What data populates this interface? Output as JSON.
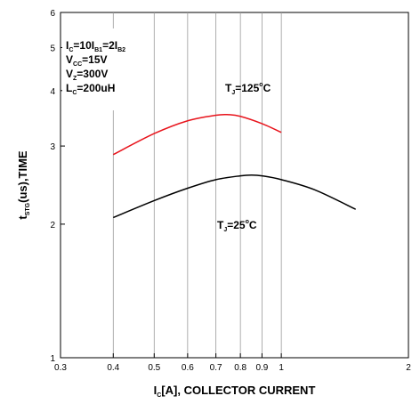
{
  "chart_data": {
    "type": "line",
    "x_scale": "log",
    "y_scale": "log",
    "xlim": [
      0.3,
      2
    ],
    "ylim": [
      1,
      6
    ],
    "x_ticks": [
      0.3,
      0.4,
      0.5,
      0.6,
      0.7,
      0.8,
      0.9,
      1,
      2
    ],
    "y_ticks": [
      1,
      2,
      3,
      4,
      5,
      6
    ],
    "x_tick_labels": [
      "0.3",
      "0.4",
      "0.5",
      "0.6",
      "0.7",
      "0.8",
      "0.9",
      "1",
      "2"
    ],
    "y_tick_labels": [
      "1",
      "2",
      "3",
      "4",
      "5",
      "6"
    ],
    "vertical_gridlines": [
      0.4,
      0.5,
      0.6,
      0.7,
      0.8,
      0.9,
      1
    ],
    "xlabel": {
      "main": "I",
      "sub": "C",
      "rest": "[A], COLLECTOR CURRENT"
    },
    "ylabel": {
      "main": "t",
      "sub": "STG",
      "rest": "(us),TIME"
    },
    "conditions": [
      {
        "parts": [
          [
            "I",
            ""
          ],
          [
            "C",
            "sub"
          ],
          [
            "=10I",
            ""
          ],
          [
            "B1",
            "sub"
          ],
          [
            "=2I",
            ""
          ],
          [
            "B2",
            "sub"
          ]
        ]
      },
      {
        "parts": [
          [
            "V",
            ""
          ],
          [
            "CC",
            "sub"
          ],
          [
            "=15V",
            ""
          ]
        ]
      },
      {
        "parts": [
          [
            "V",
            ""
          ],
          [
            "Z",
            "sub"
          ],
          [
            "=300V",
            ""
          ]
        ]
      },
      {
        "parts": [
          [
            "L",
            ""
          ],
          [
            "C",
            "sub"
          ],
          [
            "=200uH",
            ""
          ]
        ]
      }
    ],
    "series": [
      {
        "color": "#e8141c",
        "label_parts": [
          [
            "T",
            ""
          ],
          [
            "J",
            "sub"
          ],
          [
            "=125",
            ""
          ],
          [
            "o",
            "sup"
          ],
          [
            "C",
            ""
          ]
        ],
        "points": [
          [
            0.4,
            2.87
          ],
          [
            0.5,
            3.2
          ],
          [
            0.6,
            3.42
          ],
          [
            0.7,
            3.52
          ],
          [
            0.75,
            3.53
          ],
          [
            0.8,
            3.5
          ],
          [
            0.9,
            3.37
          ],
          [
            1.0,
            3.22
          ]
        ]
      },
      {
        "color": "#000000",
        "label_parts": [
          [
            "T",
            ""
          ],
          [
            "J",
            "sub"
          ],
          [
            "=25",
            ""
          ],
          [
            "o",
            "sup"
          ],
          [
            "C",
            ""
          ]
        ],
        "points": [
          [
            0.4,
            2.07
          ],
          [
            0.5,
            2.26
          ],
          [
            0.6,
            2.41
          ],
          [
            0.7,
            2.52
          ],
          [
            0.8,
            2.57
          ],
          [
            0.85,
            2.58
          ],
          [
            0.9,
            2.57
          ],
          [
            1.0,
            2.52
          ],
          [
            1.2,
            2.39
          ],
          [
            1.5,
            2.16
          ]
        ]
      }
    ]
  }
}
